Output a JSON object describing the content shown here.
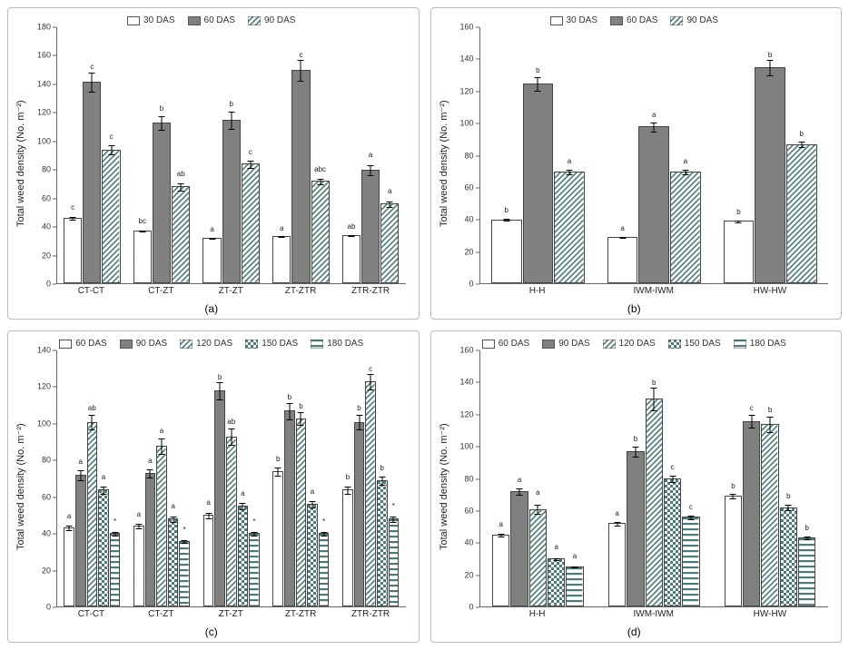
{
  "colors": {
    "outline": "#555555",
    "solid_gray": "#808080",
    "teal": "#4a7b7b",
    "white": "#ffffff",
    "text": "#222222"
  },
  "patterns": {
    "open": {
      "fill": "#ffffff",
      "pattern": "none"
    },
    "solid": {
      "fill": "#808080",
      "pattern": "none"
    },
    "diag": {
      "fill": "#ffffff",
      "pattern": "diag",
      "stroke": "#4a7b7b"
    },
    "check": {
      "fill": "#ffffff",
      "pattern": "check",
      "stroke": "#4a7b7b"
    },
    "hstripe": {
      "fill": "#ffffff",
      "pattern": "hstripe",
      "stroke": "#4a7b7b"
    }
  },
  "panels": {
    "a": {
      "caption": "(a)",
      "ylabel": "Total weed density (No. m⁻²)",
      "ylim": [
        0,
        180
      ],
      "ytick_step": 20,
      "legend": [
        {
          "label": "30 DAS",
          "pattern": "open"
        },
        {
          "label": "60 DAS",
          "pattern": "solid"
        },
        {
          "label": "90 DAS",
          "pattern": "diag"
        }
      ],
      "categories": [
        "CT-CT",
        "CT-ZT",
        "ZT-ZT",
        "ZT-ZTR",
        "ZTR-ZTR"
      ],
      "groups": [
        {
          "bars": [
            {
              "pattern": "open",
              "value": 46,
              "err": 5,
              "letter": "c"
            },
            {
              "pattern": "solid",
              "value": 142,
              "err": 9,
              "letter": "c"
            },
            {
              "pattern": "diag",
              "value": 94,
              "err": 7,
              "letter": "c"
            }
          ]
        },
        {
          "bars": [
            {
              "pattern": "open",
              "value": 37,
              "err": 4,
              "letter": "bc"
            },
            {
              "pattern": "solid",
              "value": 113,
              "err": 8,
              "letter": "b"
            },
            {
              "pattern": "diag",
              "value": 68,
              "err": 7,
              "letter": "ab"
            }
          ]
        },
        {
          "bars": [
            {
              "pattern": "open",
              "value": 32,
              "err": 3,
              "letter": "a"
            },
            {
              "pattern": "solid",
              "value": 115,
              "err": 10,
              "letter": "b"
            },
            {
              "pattern": "diag",
              "value": 84,
              "err": 6,
              "letter": "c"
            }
          ]
        },
        {
          "bars": [
            {
              "pattern": "open",
              "value": 33,
              "err": 3,
              "letter": "a"
            },
            {
              "pattern": "solid",
              "value": 150,
              "err": 9,
              "letter": "c"
            },
            {
              "pattern": "diag",
              "value": 72,
              "err": 6,
              "letter": "abc"
            }
          ]
        },
        {
          "bars": [
            {
              "pattern": "open",
              "value": 34,
              "err": 3,
              "letter": "ab"
            },
            {
              "pattern": "solid",
              "value": 80,
              "err": 9,
              "letter": "a"
            },
            {
              "pattern": "diag",
              "value": 56,
              "err": 7,
              "letter": "a"
            }
          ]
        }
      ]
    },
    "b": {
      "caption": "(b)",
      "ylabel": "Total weed density (No. m⁻²)",
      "ylim": [
        0,
        160
      ],
      "ytick_step": 20,
      "legend": [
        {
          "label": "30 DAS",
          "pattern": "open"
        },
        {
          "label": "60 DAS",
          "pattern": "solid"
        },
        {
          "label": "90 DAS",
          "pattern": "diag"
        }
      ],
      "categories": [
        "H-H",
        "IWM-IWM",
        "HW-HW"
      ],
      "groups": [
        {
          "bars": [
            {
              "pattern": "open",
              "value": 40,
              "err": 3,
              "letter": "b"
            },
            {
              "pattern": "solid",
              "value": 125,
              "err": 6,
              "letter": "b"
            },
            {
              "pattern": "diag",
              "value": 70,
              "err": 4,
              "letter": "a"
            }
          ]
        },
        {
          "bars": [
            {
              "pattern": "open",
              "value": 29,
              "err": 3,
              "letter": "a"
            },
            {
              "pattern": "solid",
              "value": 98,
              "err": 5,
              "letter": "a"
            },
            {
              "pattern": "diag",
              "value": 70,
              "err": 4,
              "letter": "a"
            }
          ]
        },
        {
          "bars": [
            {
              "pattern": "open",
              "value": 39,
              "err": 3,
              "letter": "b"
            },
            {
              "pattern": "solid",
              "value": 135,
              "err": 6,
              "letter": "b"
            },
            {
              "pattern": "diag",
              "value": 87,
              "err": 4,
              "letter": "b"
            }
          ]
        }
      ]
    },
    "c": {
      "caption": "(c)",
      "ylabel": "Total weed density (No. m⁻²)",
      "ylim": [
        0,
        140
      ],
      "ytick_step": 20,
      "legend": [
        {
          "label": "60 DAS",
          "pattern": "open"
        },
        {
          "label": "90 DAS",
          "pattern": "solid"
        },
        {
          "label": "120 DAS",
          "pattern": "diag"
        },
        {
          "label": "150 DAS",
          "pattern": "check"
        },
        {
          "label": "180 DAS",
          "pattern": "hstripe"
        }
      ],
      "categories": [
        "CT-CT",
        "CT-ZT",
        "ZT-ZT",
        "ZT-ZTR",
        "ZTR-ZTR"
      ],
      "groups": [
        {
          "bars": [
            {
              "pattern": "open",
              "value": 43,
              "err": 5,
              "letter": "a"
            },
            {
              "pattern": "solid",
              "value": 72,
              "err": 6,
              "letter": "a"
            },
            {
              "pattern": "diag",
              "value": 101,
              "err": 6,
              "letter": "ab"
            },
            {
              "pattern": "check",
              "value": 64,
              "err": 5,
              "letter": "a"
            },
            {
              "pattern": "hstripe",
              "value": 40,
              "err": 5,
              "letter": "*"
            }
          ]
        },
        {
          "bars": [
            {
              "pattern": "open",
              "value": 44,
              "err": 5,
              "letter": "a"
            },
            {
              "pattern": "solid",
              "value": 73,
              "err": 5,
              "letter": "a"
            },
            {
              "pattern": "diag",
              "value": 88,
              "err": 7,
              "letter": "a"
            },
            {
              "pattern": "check",
              "value": 48,
              "err": 5,
              "letter": "a"
            },
            {
              "pattern": "hstripe",
              "value": 36,
              "err": 4,
              "letter": "*"
            }
          ]
        },
        {
          "bars": [
            {
              "pattern": "open",
              "value": 50,
              "err": 5,
              "letter": "a"
            },
            {
              "pattern": "solid",
              "value": 118,
              "err": 6,
              "letter": "b"
            },
            {
              "pattern": "diag",
              "value": 93,
              "err": 7,
              "letter": "ab"
            },
            {
              "pattern": "check",
              "value": 55,
              "err": 5,
              "letter": "a"
            },
            {
              "pattern": "hstripe",
              "value": 40,
              "err": 5,
              "letter": "*"
            }
          ]
        },
        {
          "bars": [
            {
              "pattern": "open",
              "value": 74,
              "err": 5,
              "letter": "b"
            },
            {
              "pattern": "solid",
              "value": 107,
              "err": 6,
              "letter": "b"
            },
            {
              "pattern": "diag",
              "value": 103,
              "err": 5,
              "letter": "b"
            },
            {
              "pattern": "check",
              "value": 56,
              "err": 5,
              "letter": "a"
            },
            {
              "pattern": "hstripe",
              "value": 40,
              "err": 5,
              "letter": "*"
            }
          ]
        },
        {
          "bars": [
            {
              "pattern": "open",
              "value": 64,
              "err": 5,
              "letter": "b"
            },
            {
              "pattern": "solid",
              "value": 101,
              "err": 6,
              "letter": "b"
            },
            {
              "pattern": "diag",
              "value": 123,
              "err": 5,
              "letter": "c"
            },
            {
              "pattern": "check",
              "value": 69,
              "err": 5,
              "letter": "b"
            },
            {
              "pattern": "hstripe",
              "value": 48,
              "err": 5,
              "letter": "*"
            }
          ]
        }
      ]
    },
    "d": {
      "caption": "(d)",
      "ylabel": "Total weed density (No. m⁻²)",
      "ylim": [
        0,
        160
      ],
      "ytick_step": 20,
      "legend": [
        {
          "label": "60 DAS",
          "pattern": "open"
        },
        {
          "label": "90 DAS",
          "pattern": "solid"
        },
        {
          "label": "120 DAS",
          "pattern": "diag"
        },
        {
          "label": "150 DAS",
          "pattern": "check"
        },
        {
          "label": "180 DAS",
          "pattern": "hstripe"
        }
      ],
      "categories": [
        "H-H",
        "IWM-IWM",
        "HW-HW"
      ],
      "groups": [
        {
          "bars": [
            {
              "pattern": "open",
              "value": 45,
              "err": 4,
              "letter": "a"
            },
            {
              "pattern": "solid",
              "value": 72,
              "err": 5,
              "letter": "a"
            },
            {
              "pattern": "diag",
              "value": 61,
              "err": 9,
              "letter": "a"
            },
            {
              "pattern": "check",
              "value": 30,
              "err": 5,
              "letter": "a"
            },
            {
              "pattern": "hstripe",
              "value": 25,
              "err": 4,
              "letter": "a"
            }
          ]
        },
        {
          "bars": [
            {
              "pattern": "open",
              "value": 52,
              "err": 4,
              "letter": "a"
            },
            {
              "pattern": "solid",
              "value": 97,
              "err": 6,
              "letter": "b"
            },
            {
              "pattern": "diag",
              "value": 130,
              "err": 9,
              "letter": "b"
            },
            {
              "pattern": "check",
              "value": 80,
              "err": 5,
              "letter": "c"
            },
            {
              "pattern": "hstripe",
              "value": 56,
              "err": 4,
              "letter": "c"
            }
          ]
        },
        {
          "bars": [
            {
              "pattern": "open",
              "value": 69,
              "err": 4,
              "letter": "b"
            },
            {
              "pattern": "solid",
              "value": 116,
              "err": 6,
              "letter": "c"
            },
            {
              "pattern": "diag",
              "value": 114,
              "err": 7,
              "letter": "b"
            },
            {
              "pattern": "check",
              "value": 62,
              "err": 5,
              "letter": "b"
            },
            {
              "pattern": "hstripe",
              "value": 43,
              "err": 4,
              "letter": "b"
            }
          ]
        }
      ]
    }
  }
}
